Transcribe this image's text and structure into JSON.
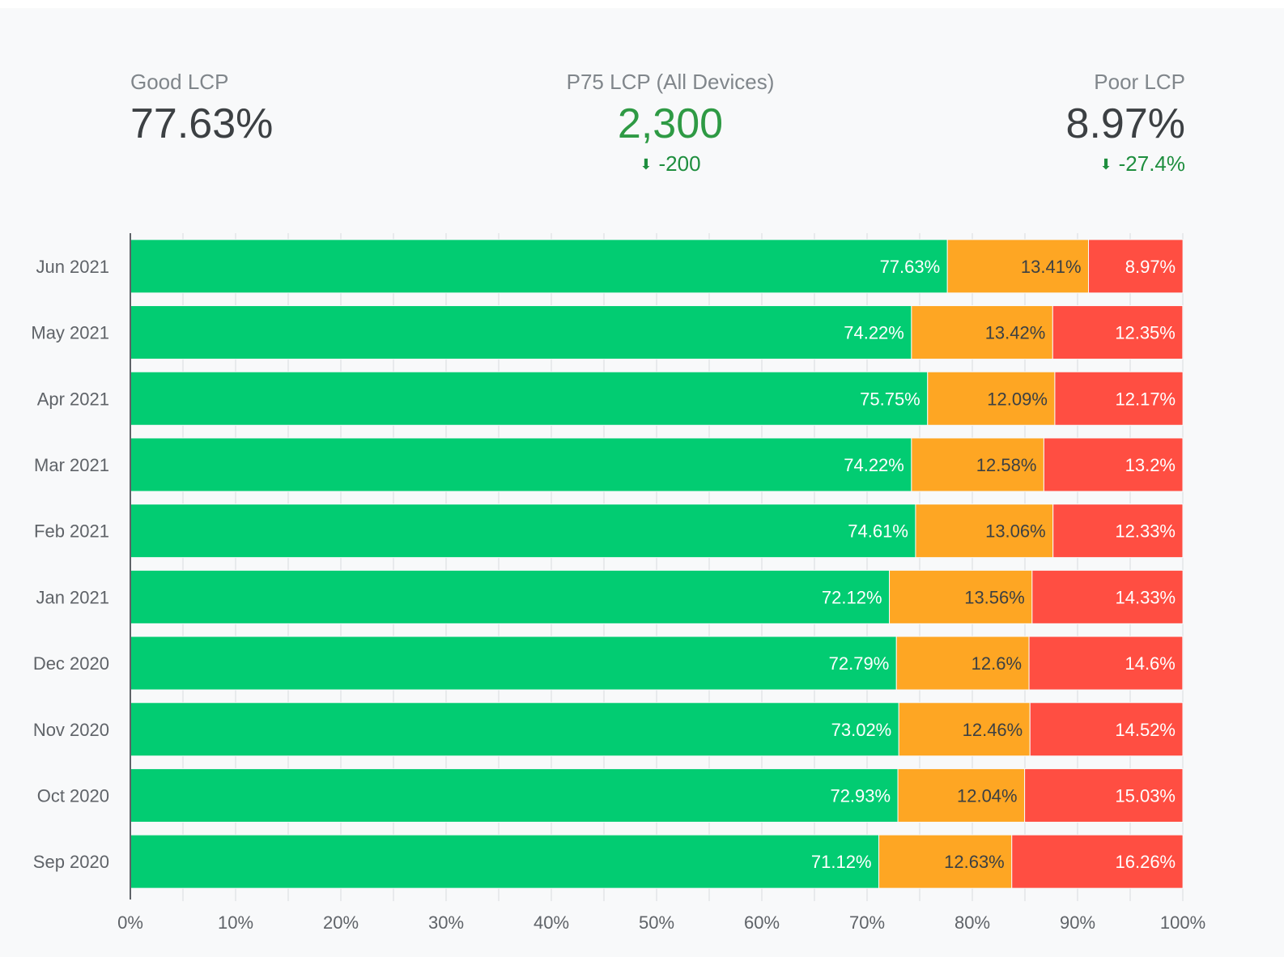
{
  "kpis": {
    "good": {
      "label": "Good LCP",
      "value": "77.63%"
    },
    "p75": {
      "label": "P75 LCP (All Devices)",
      "value": "2,300",
      "delta": "-200",
      "delta_icon": "arrow-down-icon"
    },
    "poor": {
      "label": "Poor LCP",
      "value": "8.97%",
      "delta": "-27.4%",
      "delta_icon": "arrow-down-icon"
    }
  },
  "chart_data": {
    "type": "bar",
    "orientation": "horizontal",
    "stacked": true,
    "categories": [
      "Jun 2021",
      "May 2021",
      "Apr 2021",
      "Mar 2021",
      "Feb 2021",
      "Jan 2021",
      "Dec 2020",
      "Nov 2020",
      "Oct 2020",
      "Sep 2020"
    ],
    "series": [
      {
        "color": "#02cc72",
        "label_color": "#ffffff",
        "values": [
          77.63,
          74.22,
          75.75,
          74.22,
          74.61,
          72.12,
          72.79,
          73.02,
          72.93,
          71.12
        ]
      },
      {
        "color": "#fea623",
        "label_color": "#3c4043",
        "values": [
          13.41,
          13.42,
          12.09,
          12.58,
          13.06,
          13.56,
          12.6,
          12.46,
          12.04,
          12.63
        ]
      },
      {
        "color": "#ff4e42",
        "label_color": "#ffffff",
        "values": [
          8.97,
          12.35,
          12.17,
          13.2,
          12.33,
          14.33,
          14.6,
          14.52,
          15.03,
          16.26
        ]
      }
    ],
    "xlim": [
      0,
      100
    ],
    "xticks": [
      "0%",
      "10%",
      "20%",
      "30%",
      "40%",
      "50%",
      "60%",
      "70%",
      "80%",
      "90%",
      "100%"
    ],
    "grid": true,
    "data_labels": true
  }
}
